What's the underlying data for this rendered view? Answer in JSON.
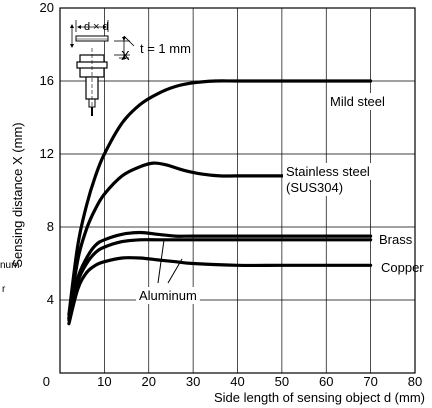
{
  "chart_data": {
    "type": "line",
    "xlabel": "Side length of sensing object d (mm)",
    "ylabel": "Sensing distance X (mm)",
    "xlim": [
      0,
      80
    ],
    "ylim": [
      0,
      20
    ],
    "x_ticks": [
      0,
      10,
      20,
      30,
      40,
      50,
      60,
      70,
      80
    ],
    "y_ticks": [
      4,
      8,
      12,
      16,
      20
    ],
    "grid": true,
    "series": [
      {
        "name": "Mild steel",
        "x": [
          2,
          4,
          6,
          8,
          10,
          14,
          18,
          22,
          26,
          30,
          35,
          40,
          50,
          60,
          70
        ],
        "y": [
          3.2,
          7.0,
          9.2,
          10.8,
          12.0,
          13.7,
          14.7,
          15.3,
          15.7,
          15.9,
          16.0,
          16.0,
          16.0,
          16.0,
          16.0
        ]
      },
      {
        "name": "Stainless steel (SUS304)",
        "x": [
          2,
          4,
          6,
          8,
          10,
          14,
          18,
          21,
          24,
          28,
          32,
          36,
          40,
          50,
          60,
          70
        ],
        "y": [
          3.0,
          6.2,
          7.9,
          9.0,
          9.8,
          10.8,
          11.3,
          11.5,
          11.4,
          11.1,
          10.9,
          10.8,
          10.8,
          10.8,
          10.8,
          10.8
        ]
      },
      {
        "name": "Brass",
        "x": [
          2,
          4,
          6,
          8,
          10,
          14,
          18,
          22,
          26,
          30,
          40,
          50,
          60,
          70
        ],
        "y": [
          3.0,
          5.2,
          6.3,
          7.0,
          7.3,
          7.6,
          7.7,
          7.6,
          7.5,
          7.5,
          7.5,
          7.5,
          7.5,
          7.5
        ]
      },
      {
        "name": "Aluminum",
        "x": [
          2,
          4,
          6,
          8,
          10,
          14,
          18,
          22,
          26,
          30,
          40,
          50,
          60,
          70
        ],
        "y": [
          2.9,
          5.0,
          6.0,
          6.6,
          6.9,
          7.2,
          7.3,
          7.3,
          7.3,
          7.3,
          7.3,
          7.3,
          7.3,
          7.3
        ]
      },
      {
        "name": "Copper",
        "x": [
          2,
          4,
          6,
          8,
          10,
          14,
          18,
          22,
          26,
          30,
          40,
          50,
          60,
          70
        ],
        "y": [
          2.7,
          4.6,
          5.5,
          5.9,
          6.1,
          6.3,
          6.3,
          6.2,
          6.1,
          6.0,
          5.9,
          5.9,
          5.9,
          5.9
        ]
      }
    ],
    "annotations": {
      "thickness": "t = 1 mm",
      "object_size": "d × d",
      "distance": "X"
    }
  },
  "edge_fragments": [
    "num",
    "r"
  ]
}
